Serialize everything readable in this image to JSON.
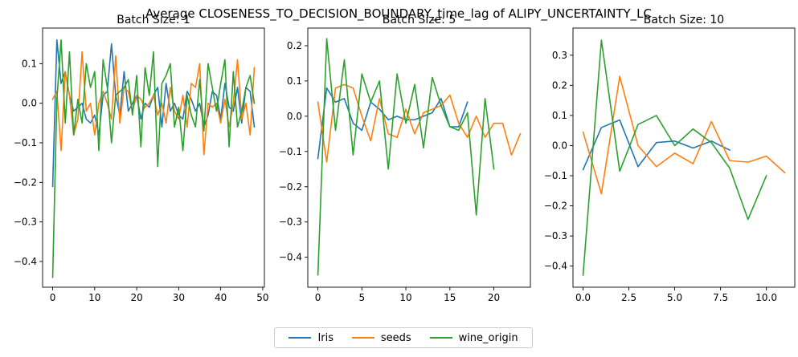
{
  "suptitle": "Average CLOSENESS_TO_DECISION_BOUNDARY_time_lag of ALIPY_UNCERTAINTY_LC",
  "legend": [
    {
      "name": "Iris",
      "color": "#1f77b4"
    },
    {
      "name": "seeds",
      "color": "#ff7f0e"
    },
    {
      "name": "wine_origin",
      "color": "#2ca02c"
    }
  ],
  "chart_data": [
    {
      "type": "line",
      "title": "Batch Size: 1",
      "xlim": [
        -2.4,
        50.4
      ],
      "ylim": [
        -0.465,
        0.19
      ],
      "xticks": [
        0,
        10,
        20,
        30,
        40,
        50
      ],
      "yticks": [
        -0.4,
        -0.3,
        -0.2,
        -0.1,
        0.0,
        0.1
      ],
      "ytick_labels": [
        "−0.4",
        "−0.3",
        "−0.2",
        "−0.1",
        "0.0",
        "0.1"
      ],
      "xtick_labels": [
        "0",
        "10",
        "20",
        "30",
        "40",
        "50"
      ],
      "series": [
        {
          "name": "Iris",
          "color": "#1f77b4",
          "x": [
            0,
            1,
            2,
            3,
            4,
            5,
            6,
            7,
            8,
            9,
            10,
            11,
            12,
            13,
            14,
            15,
            16,
            17,
            18,
            19,
            20,
            21,
            22,
            23,
            24,
            25,
            26,
            27,
            28,
            29,
            30,
            31,
            32,
            33,
            34,
            35,
            36,
            37,
            38,
            39,
            40,
            41,
            42,
            43,
            44,
            45,
            46,
            47,
            48
          ],
          "y": [
            -0.21,
            0.16,
            0.05,
            0.08,
            0.02,
            -0.02,
            -0.01,
            0.0,
            -0.04,
            -0.05,
            -0.03,
            -0.08,
            0.02,
            0.03,
            0.15,
            0.02,
            -0.03,
            0.08,
            -0.02,
            0.0,
            0.02,
            -0.04,
            0.0,
            -0.01,
            0.02,
            0.04,
            -0.06,
            0.05,
            -0.02,
            0.0,
            -0.03,
            -0.04,
            0.03,
            0.01,
            -0.02,
            0.0,
            -0.06,
            -0.03,
            0.03,
            0.02,
            -0.04,
            0.05,
            -0.01,
            -0.02,
            0.04,
            -0.05,
            0.04,
            0.03,
            -0.06
          ]
        },
        {
          "name": "seeds",
          "color": "#ff7f0e",
          "x": [
            0,
            1,
            2,
            3,
            4,
            5,
            6,
            7,
            8,
            9,
            10,
            11,
            12,
            13,
            14,
            15,
            16,
            17,
            18,
            19,
            20,
            21,
            22,
            23,
            24,
            25,
            26,
            27,
            28,
            29,
            30,
            31,
            32,
            33,
            34,
            35,
            36,
            37,
            38,
            39,
            40,
            41,
            42,
            43,
            44,
            45,
            46,
            47,
            48
          ],
          "y": [
            0.01,
            0.03,
            -0.12,
            0.08,
            0.02,
            -0.08,
            -0.04,
            0.13,
            -0.02,
            0.0,
            -0.08,
            0.0,
            0.03,
            0.0,
            -0.04,
            0.12,
            -0.05,
            0.04,
            0.03,
            -0.02,
            0.02,
            0.01,
            -0.01,
            0.0,
            0.02,
            -0.03,
            0.0,
            -0.05,
            0.04,
            -0.02,
            -0.04,
            0.02,
            -0.06,
            0.05,
            0.04,
            0.1,
            -0.13,
            0.0,
            -0.01,
            0.0,
            -0.05,
            0.01,
            -0.06,
            0.0,
            0.11,
            -0.04,
            0.0,
            -0.08,
            0.09
          ]
        },
        {
          "name": "wine_origin",
          "color": "#2ca02c",
          "x": [
            0,
            1,
            2,
            3,
            4,
            5,
            6,
            7,
            8,
            9,
            10,
            11,
            12,
            13,
            14,
            15,
            16,
            17,
            18,
            19,
            20,
            21,
            22,
            23,
            24,
            25,
            26,
            27,
            28,
            29,
            30,
            31,
            32,
            33,
            34,
            35,
            36,
            37,
            38,
            39,
            40,
            41,
            42,
            43,
            44,
            45,
            46,
            47,
            48
          ],
          "y": [
            -0.44,
            0.01,
            0.16,
            -0.05,
            0.13,
            -0.08,
            0.01,
            -0.05,
            0.1,
            0.04,
            0.08,
            -0.12,
            0.11,
            0.04,
            -0.1,
            0.02,
            0.03,
            0.04,
            0.06,
            -0.03,
            0.07,
            -0.11,
            0.09,
            0.02,
            0.13,
            -0.16,
            0.05,
            0.07,
            0.1,
            -0.06,
            -0.01,
            -0.12,
            0.02,
            -0.03,
            -0.06,
            0.06,
            -0.07,
            0.1,
            0.04,
            -0.02,
            0.05,
            0.11,
            -0.11,
            0.08,
            -0.06,
            -0.02,
            0.04,
            0.07,
            0.0
          ]
        }
      ]
    },
    {
      "type": "line",
      "title": "Batch Size: 5",
      "xlim": [
        -1.15,
        24.15
      ],
      "ylim": [
        -0.485,
        0.25
      ],
      "xticks": [
        0,
        5,
        10,
        15,
        20
      ],
      "yticks": [
        -0.4,
        -0.3,
        -0.2,
        -0.1,
        0.0,
        0.1,
        0.2
      ],
      "ytick_labels": [
        "−0.4",
        "−0.3",
        "−0.2",
        "−0.1",
        "0.0",
        "0.1",
        "0.2"
      ],
      "xtick_labels": [
        "0",
        "5",
        "10",
        "15",
        "20"
      ],
      "series": [
        {
          "name": "Iris",
          "color": "#1f77b4",
          "x": [
            0,
            1,
            2,
            3,
            4,
            5,
            6,
            7,
            8,
            9,
            10,
            11,
            12,
            13,
            14,
            15,
            16,
            17
          ],
          "y": [
            -0.12,
            0.08,
            0.04,
            0.05,
            -0.02,
            -0.04,
            0.04,
            0.02,
            -0.01,
            0.0,
            -0.01,
            -0.01,
            0.0,
            0.01,
            0.05,
            -0.03,
            -0.03,
            0.04
          ]
        },
        {
          "name": "seeds",
          "color": "#ff7f0e",
          "x": [
            0,
            1,
            2,
            3,
            4,
            5,
            6,
            7,
            8,
            9,
            10,
            11,
            12,
            13,
            14,
            15,
            16,
            17,
            18,
            19,
            20,
            21,
            22,
            23
          ],
          "y": [
            0.04,
            -0.13,
            0.08,
            0.09,
            0.08,
            0.0,
            -0.07,
            0.05,
            -0.05,
            -0.06,
            0.02,
            -0.05,
            0.01,
            0.02,
            0.03,
            0.06,
            -0.02,
            -0.06,
            0.0,
            -0.06,
            -0.02,
            -0.02,
            -0.11,
            -0.05
          ]
        },
        {
          "name": "wine_origin",
          "color": "#2ca02c",
          "x": [
            0,
            1,
            2,
            3,
            4,
            5,
            6,
            7,
            8,
            9,
            10,
            11,
            12,
            13,
            14,
            15,
            16,
            17,
            18,
            19,
            20
          ],
          "y": [
            -0.45,
            0.22,
            -0.04,
            0.16,
            -0.11,
            0.12,
            0.04,
            0.1,
            -0.15,
            0.12,
            -0.02,
            0.09,
            -0.09,
            0.11,
            0.03,
            -0.03,
            -0.04,
            0.01,
            -0.28,
            0.05,
            -0.15
          ]
        }
      ]
    },
    {
      "type": "line",
      "title": "Batch Size: 10",
      "xlim": [
        -0.55,
        11.55
      ],
      "ylim": [
        -0.47,
        0.39
      ],
      "xticks": [
        0,
        2.5,
        5,
        7.5,
        10
      ],
      "yticks": [
        -0.4,
        -0.3,
        -0.2,
        -0.1,
        0.0,
        0.1,
        0.2,
        0.3
      ],
      "ytick_labels": [
        "−0.4",
        "−0.3",
        "−0.2",
        "−0.1",
        "0.0",
        "0.1",
        "0.2",
        "0.3"
      ],
      "xtick_labels": [
        "0.0",
        "2.5",
        "5.0",
        "7.5",
        "10.0"
      ],
      "series": [
        {
          "name": "Iris",
          "color": "#1f77b4",
          "x": [
            0,
            1,
            2,
            3,
            4,
            5,
            6,
            7,
            8
          ],
          "y": [
            -0.08,
            0.06,
            0.085,
            -0.07,
            0.01,
            0.015,
            -0.008,
            0.015,
            -0.015
          ]
        },
        {
          "name": "seeds",
          "color": "#ff7f0e",
          "x": [
            0,
            1,
            2,
            3,
            4,
            5,
            6,
            7,
            8,
            9,
            10,
            11
          ],
          "y": [
            0.045,
            -0.16,
            0.23,
            0.0,
            -0.07,
            -0.025,
            -0.06,
            0.08,
            -0.05,
            -0.055,
            -0.035,
            -0.09
          ]
        },
        {
          "name": "wine_origin",
          "color": "#2ca02c",
          "x": [
            0,
            1,
            2,
            3,
            4,
            5,
            6,
            7,
            8,
            9,
            10
          ],
          "y": [
            -0.43,
            0.35,
            -0.085,
            0.07,
            0.1,
            0.0,
            0.055,
            0.01,
            -0.075,
            -0.245,
            -0.1
          ]
        }
      ]
    }
  ]
}
